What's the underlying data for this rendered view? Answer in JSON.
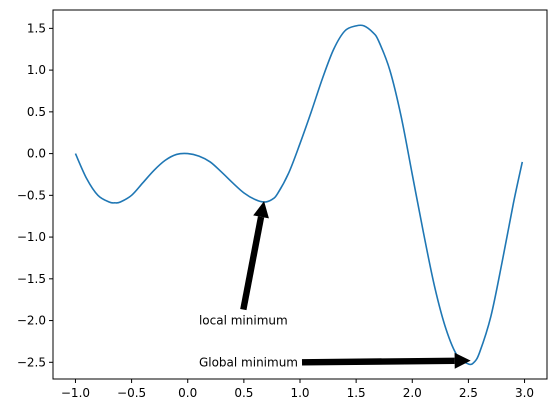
{
  "chart_data": {
    "type": "line",
    "title": "",
    "xlabel": "",
    "ylabel": "",
    "xlim": [
      -1.2,
      3.2
    ],
    "ylim": [
      -2.7,
      1.72
    ],
    "grid": false,
    "x_ticks": [
      -1.0,
      -0.5,
      0.0,
      0.5,
      1.0,
      1.5,
      2.0,
      2.5,
      3.0
    ],
    "x_tick_labels": [
      "−1.0",
      "−0.5",
      "0.0",
      "0.5",
      "1.0",
      "1.5",
      "2.0",
      "2.5",
      "3.0"
    ],
    "y_ticks": [
      1.5,
      1.0,
      0.5,
      0.0,
      -0.5,
      -1.0,
      -1.5,
      -2.0,
      -2.5
    ],
    "y_tick_labels": [
      "1.5",
      "1.0",
      "0.5",
      "0.0",
      "−0.5",
      "−1.0",
      "−1.5",
      "−2.0",
      "−2.5"
    ],
    "series": [
      {
        "color": "#1f77b4",
        "x": [
          -1.0,
          -0.9,
          -0.8,
          -0.7,
          -0.65,
          -0.6,
          -0.5,
          -0.4,
          -0.3,
          -0.2,
          -0.1,
          0.0,
          0.1,
          0.2,
          0.3,
          0.4,
          0.5,
          0.6,
          0.68,
          0.75,
          0.8,
          0.9,
          1.0,
          1.1,
          1.2,
          1.3,
          1.4,
          1.5,
          1.57,
          1.65,
          1.7,
          1.8,
          1.9,
          2.0,
          2.1,
          2.2,
          2.3,
          2.4,
          2.5,
          2.55,
          2.6,
          2.7,
          2.8,
          2.9,
          2.98
        ],
        "y": [
          0.0,
          -0.3,
          -0.5,
          -0.58,
          -0.59,
          -0.58,
          -0.5,
          -0.35,
          -0.2,
          -0.08,
          -0.01,
          0.0,
          -0.03,
          -0.1,
          -0.22,
          -0.35,
          -0.47,
          -0.55,
          -0.58,
          -0.55,
          -0.48,
          -0.23,
          0.12,
          0.5,
          0.9,
          1.25,
          1.47,
          1.53,
          1.53,
          1.45,
          1.35,
          1.0,
          0.45,
          -0.25,
          -0.95,
          -1.6,
          -2.1,
          -2.42,
          -2.52,
          -2.5,
          -2.38,
          -1.95,
          -1.3,
          -0.6,
          -0.1
        ]
      }
    ],
    "annotations": [
      {
        "text": "local minimum",
        "xy": [
          0.68,
          -0.57
        ],
        "xytext": [
          0.1,
          -2.0
        ],
        "arrow_color": "#000000"
      },
      {
        "text": "Global minimum",
        "xy": [
          2.52,
          -2.48
        ],
        "xytext": [
          0.1,
          -2.5
        ],
        "arrow_color": "#000000"
      }
    ]
  }
}
